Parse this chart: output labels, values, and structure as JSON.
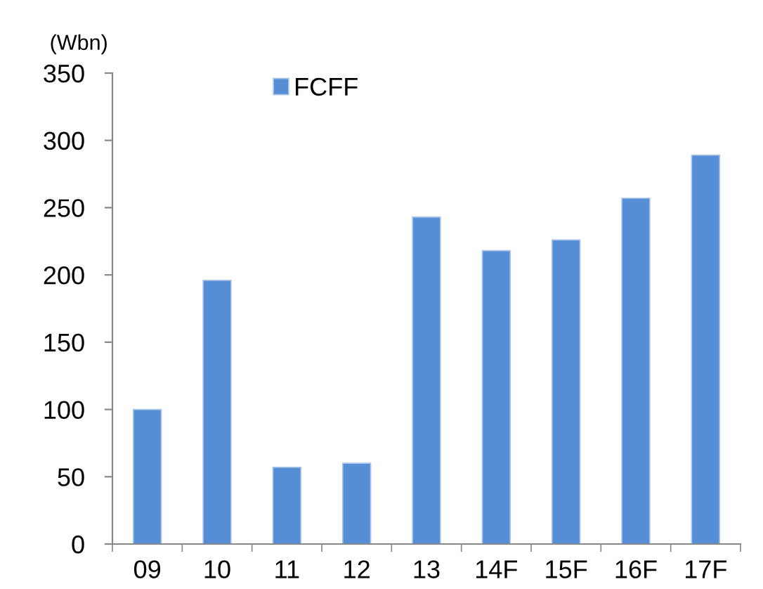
{
  "chart_data": {
    "type": "bar",
    "ylabel": "(Wbn)",
    "categories": [
      "09",
      "10",
      "11",
      "12",
      "13",
      "14F",
      "15F",
      "16F",
      "17F"
    ],
    "series": [
      {
        "name": "FCFF",
        "color": "#558ed5",
        "values": [
          100,
          196,
          57,
          60,
          243,
          218,
          226,
          257,
          289
        ]
      }
    ],
    "ylim": [
      0,
      350
    ],
    "yticks": [
      0,
      50,
      100,
      150,
      200,
      250,
      300,
      350
    ],
    "grid": false,
    "legend": "top"
  }
}
